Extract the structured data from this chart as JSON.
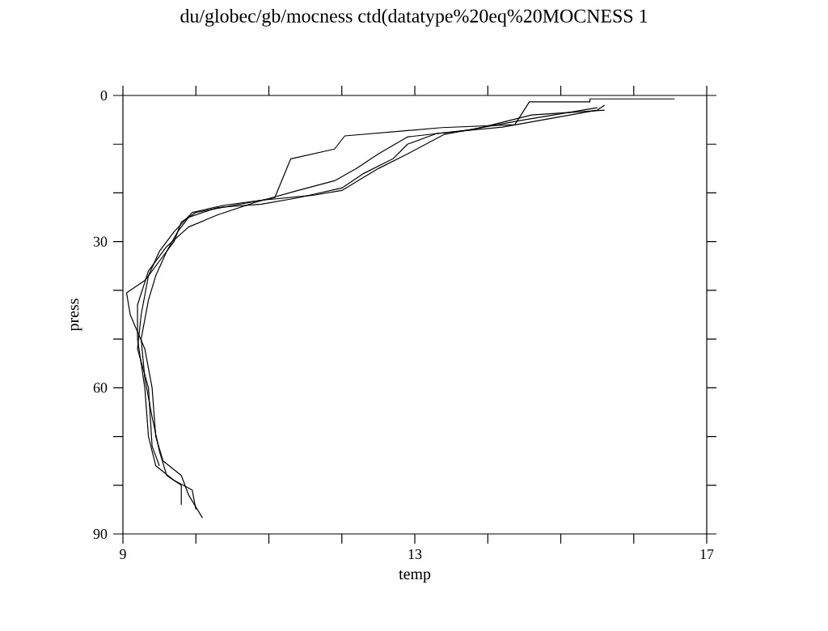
{
  "chart_data": {
    "type": "line",
    "title": "du/globec/gb/mocness ctd(datatype%20eq%20MOCNESS 1",
    "xlabel": "temp",
    "ylabel": "press",
    "xlim": [
      9,
      17
    ],
    "ylim": [
      90,
      0
    ],
    "xticks": [
      9,
      {
        "value": 10,
        "label": null
      },
      {
        "value": 11,
        "label": null
      },
      {
        "value": 12,
        "label": null
      },
      13,
      {
        "value": 14,
        "label": null
      },
      {
        "value": 15,
        "label": null
      },
      {
        "value": 16,
        "label": null
      },
      17
    ],
    "yticks": [
      0,
      {
        "value": 10,
        "label": null
      },
      {
        "value": 20,
        "label": null
      },
      30,
      {
        "value": 40,
        "label": null
      },
      {
        "value": 50,
        "label": null
      },
      60,
      {
        "value": 70,
        "label": null
      },
      {
        "value": 80,
        "label": null
      },
      90
    ],
    "grid": false,
    "marker": "none",
    "line_style": "solid",
    "series": [
      {
        "color": "#000000",
        "x": [
          16.56,
          15.4,
          15.4,
          14.57,
          14.37,
          13.37,
          12.04,
          11.9,
          11.3,
          11.08,
          10.5,
          10.0,
          9.8,
          9.7,
          9.5,
          9.3,
          9.05,
          9.1,
          9.3,
          9.4,
          9.45,
          9.55,
          9.8,
          9.9,
          10.09
        ],
        "values": [
          0.7,
          0.7,
          1.3,
          1.3,
          6,
          6.6,
          8.3,
          11,
          13,
          21,
          22.6,
          24,
          26,
          30,
          34,
          38,
          40.5,
          45,
          52,
          60,
          70,
          75,
          78,
          82,
          86.7
        ]
      },
      {
        "color": "#000000",
        "x": [
          15.6,
          15.5,
          14.2,
          13.3,
          12.9,
          12.7,
          12.3,
          12.0,
          11.4,
          10.9,
          10.3,
          9.9,
          9.75,
          9.6,
          9.45,
          9.35,
          9.25,
          9.3,
          9.4,
          9.5,
          9.6,
          9.8,
          9.8
        ],
        "values": [
          2,
          3,
          6.5,
          7.8,
          10,
          13,
          16,
          19,
          21,
          22.3,
          23,
          25,
          28,
          32,
          37,
          42,
          50,
          58,
          66,
          73,
          78,
          80,
          84
        ]
      },
      {
        "color": "#000000",
        "x": [
          15.6,
          14.6,
          13.8,
          12.9,
          12.5,
          12.2,
          11.9,
          11.4,
          10.8,
          10.3,
          9.9,
          9.6,
          9.35,
          9.2,
          9.2,
          9.3,
          9.35,
          9.45,
          9.7,
          9.95,
          10.0
        ],
        "values": [
          3,
          4,
          7,
          8.5,
          12,
          15,
          17.5,
          19.5,
          22,
          24.5,
          27,
          31,
          36,
          43,
          50,
          60,
          70,
          76,
          79,
          81,
          85
        ]
      },
      {
        "color": "#000000",
        "x": [
          15.5,
          14.5,
          13.4,
          12.9,
          12.5,
          12.0,
          11.6,
          10.9,
          10.4,
          9.95,
          9.7,
          9.5,
          9.35,
          9.25,
          9.2,
          9.35,
          9.4,
          9.5
        ],
        "values": [
          2.5,
          5,
          8,
          12,
          15,
          19.5,
          20.5,
          21.5,
          22.5,
          24,
          28,
          32,
          37,
          45,
          52,
          60,
          72,
          76
        ]
      }
    ]
  }
}
